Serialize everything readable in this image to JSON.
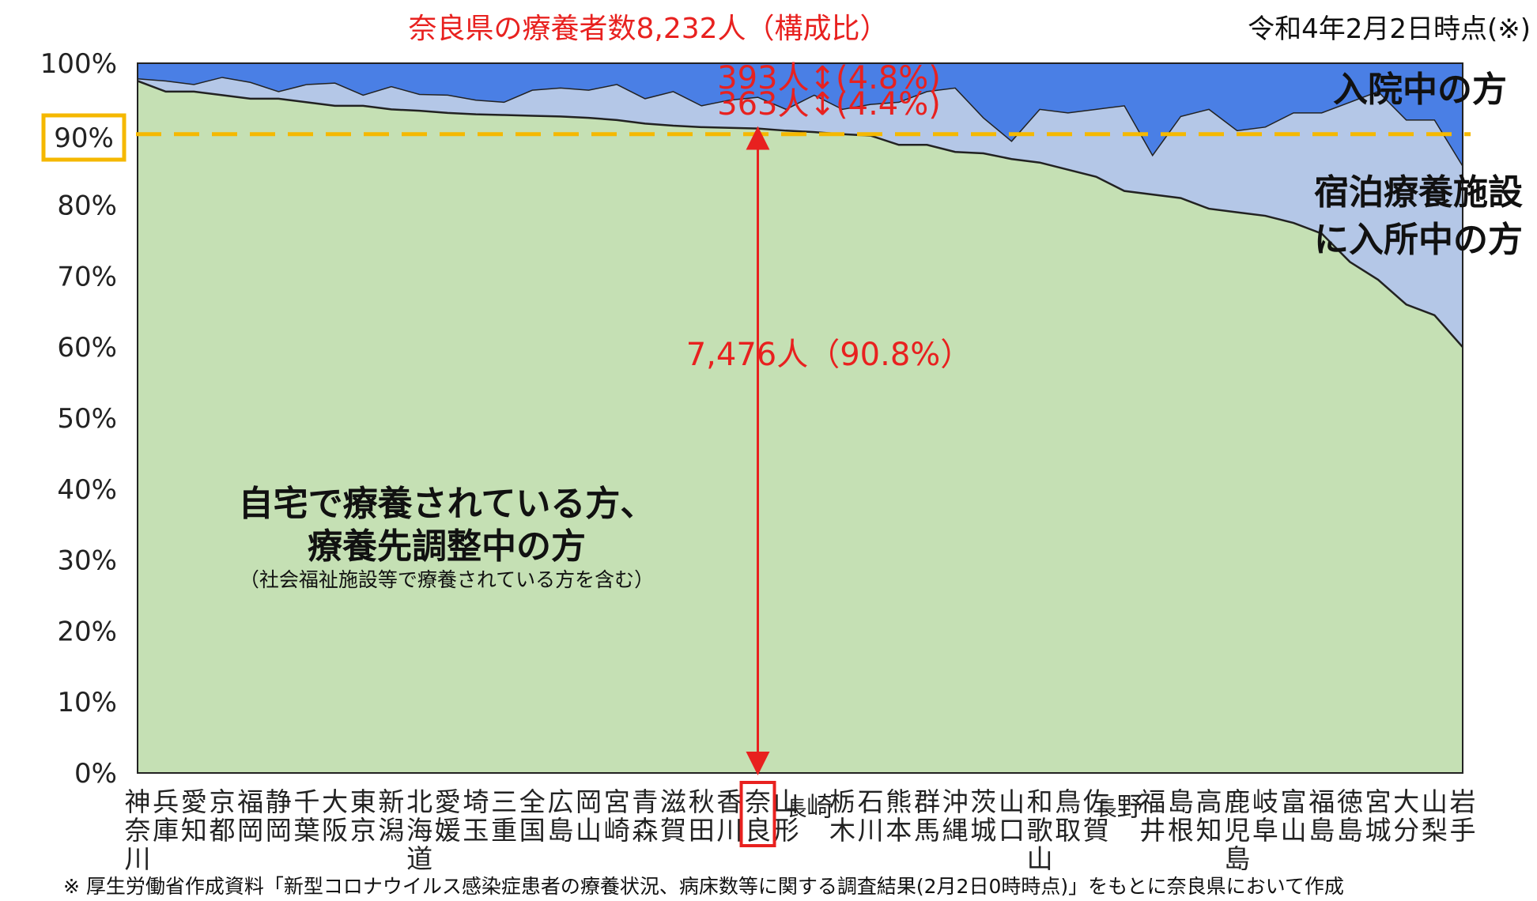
{
  "chart_data": {
    "type": "area",
    "stacked": true,
    "percent": true,
    "title": "奈良県の療養者数8,232人（構成比）",
    "date_note": "令和4年2月2日時点(※)",
    "yticks": [
      "0%",
      "10%",
      "20%",
      "30%",
      "40%",
      "50%",
      "60%",
      "70%",
      "80%",
      "90%",
      "100%"
    ],
    "ylim": [
      0,
      100
    ],
    "categories": [
      "神奈川",
      "兵庫",
      "愛知",
      "京都",
      "福岡",
      "静岡",
      "千葉",
      "大阪",
      "東京",
      "新潟",
      "北海道",
      "愛媛",
      "埼玉",
      "三重",
      "全国",
      "広島",
      "岡山",
      "宮崎",
      "青森",
      "滋賀",
      "秋田",
      "香川",
      "奈良",
      "山形",
      "長崎",
      "栃木",
      "石川",
      "熊本",
      "群馬",
      "沖縄",
      "茨城",
      "山口",
      "和歌山",
      "鳥取",
      "佐賀",
      "長野",
      "福井",
      "島根",
      "高知",
      "鹿児島",
      "岐阜",
      "富山",
      "福島",
      "徳島",
      "宮城",
      "大分",
      "山梨",
      "岩手"
    ],
    "series": [
      {
        "name": "自宅で療養されている方、療養先調整中の方",
        "color": "#c5e0b4",
        "values": [
          97.5,
          96.0,
          96.0,
          95.5,
          95.0,
          95.0,
          94.5,
          94.0,
          94.0,
          93.5,
          93.3,
          93.0,
          92.8,
          92.7,
          92.6,
          92.5,
          92.3,
          92.0,
          91.5,
          91.2,
          91.0,
          90.9,
          90.8,
          90.5,
          90.3,
          90.0,
          89.8,
          88.5,
          88.5,
          87.5,
          87.3,
          86.5,
          86.0,
          85.0,
          84.0,
          82.0,
          81.5,
          81.0,
          79.5,
          79.0,
          78.5,
          77.5,
          76.0,
          72.0,
          69.5,
          66.0,
          64.5,
          60.0
        ]
      },
      {
        "name": "宿泊療養施設に入所中の方",
        "color": "#b4c7e7",
        "values": [
          0.3,
          1.5,
          1.0,
          2.5,
          2.3,
          1.0,
          2.5,
          3.2,
          1.5,
          3.2,
          2.3,
          2.5,
          2.0,
          1.8,
          3.6,
          4.0,
          3.9,
          5.0,
          3.5,
          4.8,
          3.0,
          3.9,
          4.4,
          3.0,
          5.2,
          3.5,
          4.4,
          6.0,
          7.5,
          9.0,
          5.0,
          2.5,
          7.5,
          8.0,
          9.5,
          12.0,
          5.5,
          11.5,
          14.0,
          11.5,
          12.5,
          15.5,
          17.0,
          22.5,
          26.5,
          26.0,
          27.5,
          25.5
        ]
      },
      {
        "name": "入院中の方",
        "color": "#4a7fe5",
        "values": [
          2.2,
          2.5,
          3.0,
          2.0,
          2.7,
          4.0,
          3.0,
          2.8,
          4.5,
          3.3,
          4.4,
          4.5,
          5.2,
          5.5,
          3.8,
          3.5,
          3.8,
          3.0,
          5.0,
          4.0,
          6.0,
          5.2,
          4.8,
          6.5,
          4.5,
          6.5,
          5.8,
          5.5,
          4.0,
          3.5,
          7.7,
          11.0,
          6.5,
          7.0,
          6.5,
          6.0,
          13.0,
          7.5,
          6.5,
          9.5,
          9.0,
          7.0,
          7.0,
          5.5,
          4.0,
          8.0,
          8.0,
          14.5
        ]
      }
    ],
    "highlight_category": "奈良",
    "reference_line": {
      "value": 90,
      "label": "90%",
      "color": "#f5b800"
    },
    "annotations": {
      "home": "7,476人（90.8%）",
      "hotel": "363人↕(4.4%)",
      "hospital": "393人↕(4.8%)"
    },
    "series_labels": {
      "home_line1": "自宅で療養されている方、",
      "home_line2": "療養先調整中の方",
      "home_line3": "（社会福祉施設等で療養されている方を含む）",
      "hotel_line1": "宿泊療養施設",
      "hotel_line2": "に入所中の方",
      "hospital": "入院中の方"
    }
  },
  "footnote": "※ 厚生労働省作成資料「新型コロナウイルス感染症患者の療養状況、病床数等に関する調査結果(2月2日0時時点)」をもとに奈良県において作成"
}
